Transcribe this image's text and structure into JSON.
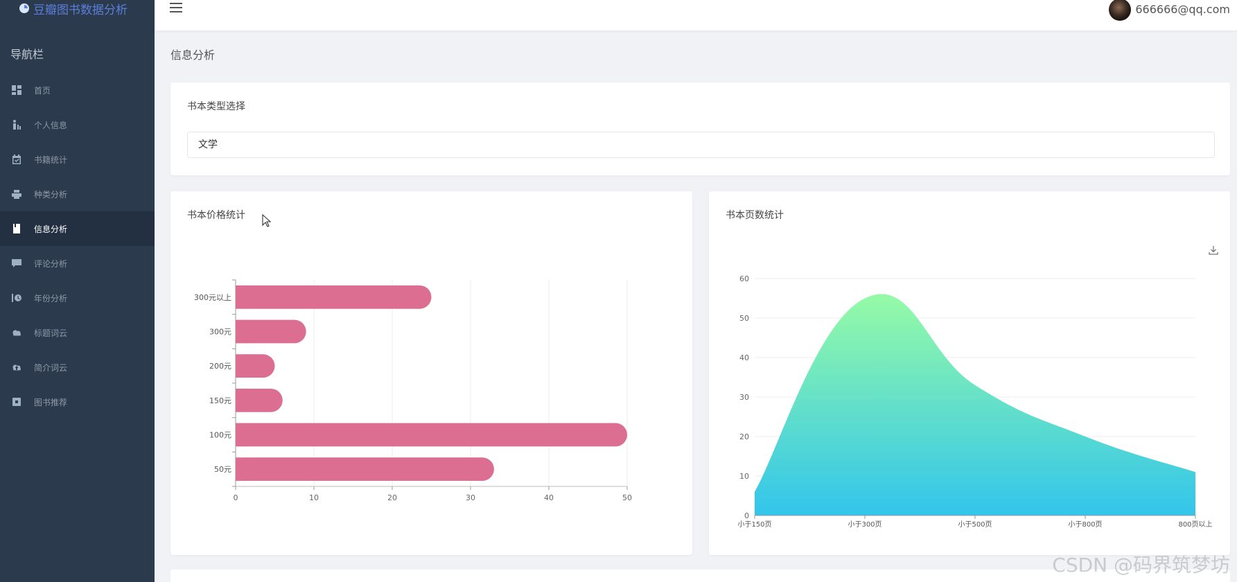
{
  "app": {
    "title": "豆瓣图书数据分析"
  },
  "sidebar": {
    "nav_title": "导航栏",
    "items": [
      {
        "label": "首页",
        "icon": "dashboard-icon"
      },
      {
        "label": "个人信息",
        "icon": "person-icon"
      },
      {
        "label": "书籍统计",
        "icon": "calendar-check-icon"
      },
      {
        "label": "种类分析",
        "icon": "printer-icon"
      },
      {
        "label": "信息分析",
        "icon": "book-icon",
        "active": true
      },
      {
        "label": "评论分析",
        "icon": "comment-icon"
      },
      {
        "label": "年份分析",
        "icon": "history-icon"
      },
      {
        "label": "标题词云",
        "icon": "cloud-icon"
      },
      {
        "label": "简介词云",
        "icon": "cloud-upload-icon"
      },
      {
        "label": "图书推荐",
        "icon": "square-icon"
      }
    ]
  },
  "header": {
    "user_email": "666666@qq.com"
  },
  "breadcrumb": "信息分析",
  "select_card": {
    "title": "书本类型选择",
    "selected": "文学"
  },
  "price_card": {
    "title": "书本价格统计"
  },
  "pages_card": {
    "title": "书本页数统计"
  },
  "watermark": "CSDN @码界筑梦坊",
  "colors": {
    "bar": "#dc6e92",
    "area_top": "#96fba6",
    "area_bottom": "#32c5ec",
    "sidebar": "#2b3a4d"
  },
  "chart_data": [
    {
      "type": "bar",
      "orientation": "horizontal",
      "categories": [
        "50元",
        "100元",
        "150元",
        "200元",
        "300元",
        "300元以上"
      ],
      "values": [
        33,
        50,
        6,
        5,
        9,
        25
      ],
      "title": "",
      "xlim": [
        0,
        50
      ],
      "xticks": [
        0,
        10,
        20,
        30,
        40,
        50
      ],
      "grid": true
    },
    {
      "type": "area",
      "categories": [
        "小于150页",
        "小于300页",
        "小于500页",
        "小于800页",
        "800页以上"
      ],
      "values": [
        6,
        55,
        33,
        20,
        11
      ],
      "title": "",
      "ylim": [
        0,
        60
      ],
      "yticks": [
        0,
        10,
        20,
        30,
        40,
        50,
        60
      ],
      "grid": true,
      "smooth": true
    }
  ]
}
